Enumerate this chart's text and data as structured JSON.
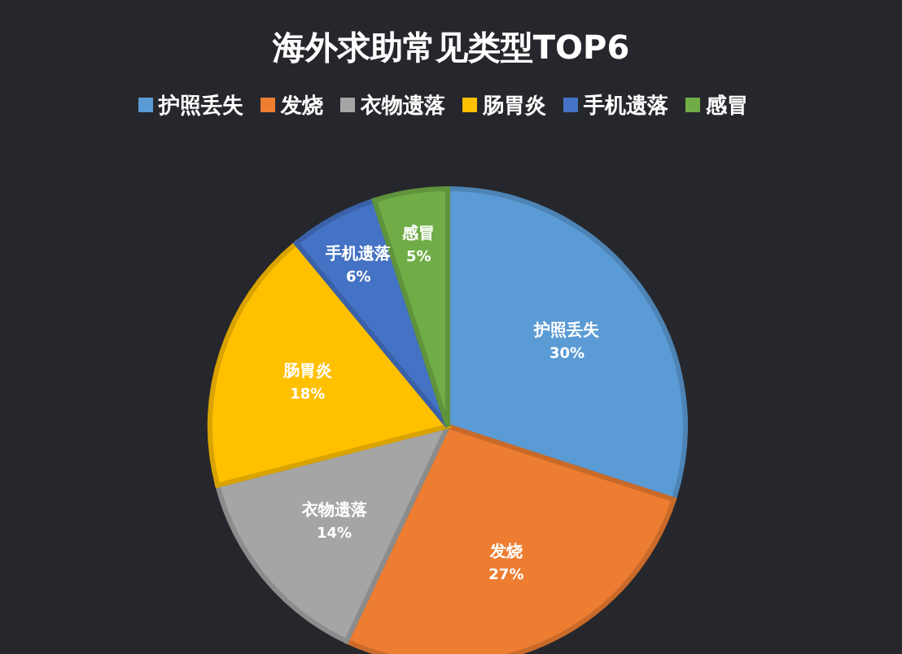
{
  "chart_data": {
    "type": "pie",
    "title": "海外求助常见类型TOP6",
    "categories": [
      "护照丢失",
      "发烧",
      "衣物遗落",
      "肠胃炎",
      "手机遗落",
      "感冒"
    ],
    "values": [
      30,
      27,
      14,
      18,
      6,
      5
    ],
    "value_labels": [
      "30%",
      "27%",
      "14%",
      "18%",
      "6%",
      "5%"
    ],
    "colors": [
      "#5b9bd5",
      "#ed7d31",
      "#a5a5a5",
      "#ffc000",
      "#4472c4",
      "#70ad47"
    ],
    "legend": "top"
  }
}
